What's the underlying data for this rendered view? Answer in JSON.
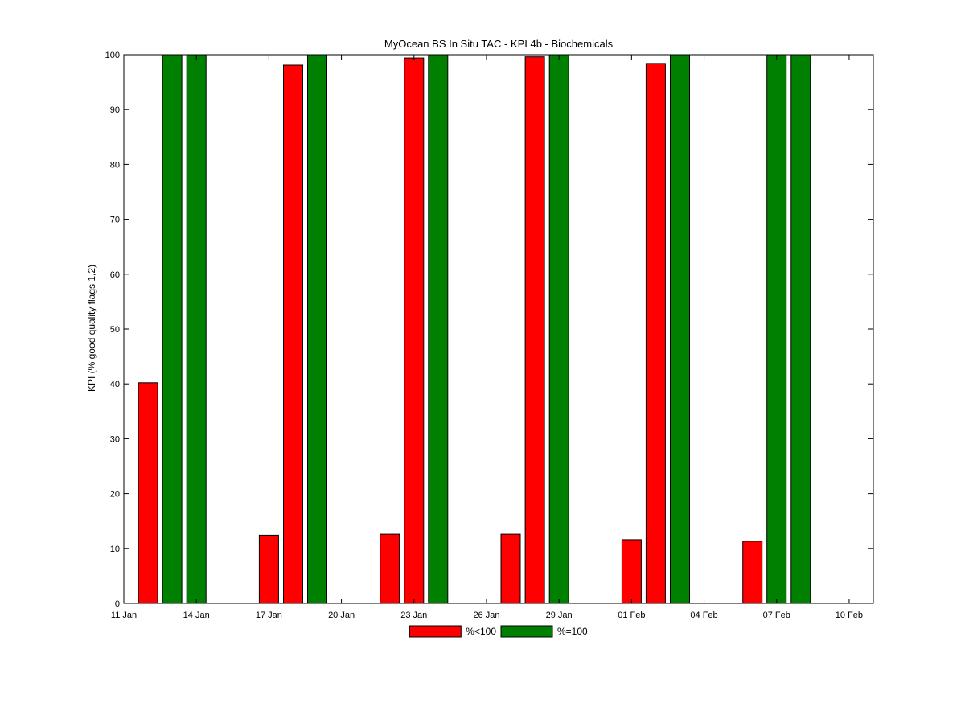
{
  "chart_data": {
    "type": "bar",
    "title": "MyOcean  BS In Situ TAC - KPI 4b - Biochemicals",
    "xlabel": "",
    "ylabel": "KPI (% good quality flags 1,2)",
    "ylim": [
      0,
      100
    ],
    "xlim": [
      "11 Jan",
      "11 Feb"
    ],
    "x_ticks": [
      "11 Jan",
      "14 Jan",
      "17 Jan",
      "20 Jan",
      "23 Jan",
      "26 Jan",
      "29 Jan",
      "01 Feb",
      "04 Feb",
      "07 Feb",
      "10 Feb"
    ],
    "y_ticks": [
      0,
      10,
      20,
      30,
      40,
      50,
      60,
      70,
      80,
      90,
      100
    ],
    "legend_position": "bottom-center",
    "grid": false,
    "series": [
      {
        "name": "%<100",
        "color": "#ff0000",
        "points": [
          {
            "x": "12 Jan",
            "y": 40.2
          },
          {
            "x": "17 Jan",
            "y": 12.4
          },
          {
            "x": "18 Jan",
            "y": 98.1
          },
          {
            "x": "22 Jan",
            "y": 12.6
          },
          {
            "x": "23 Jan",
            "y": 99.4
          },
          {
            "x": "27 Jan",
            "y": 12.6
          },
          {
            "x": "28 Jan",
            "y": 99.6
          },
          {
            "x": "01 Feb",
            "y": 11.6
          },
          {
            "x": "02 Feb",
            "y": 98.4
          },
          {
            "x": "06 Feb",
            "y": 11.3
          }
        ]
      },
      {
        "name": "%=100",
        "color": "#008000",
        "points": [
          {
            "x": "13 Jan",
            "y": 100
          },
          {
            "x": "14 Jan",
            "y": 100
          },
          {
            "x": "19 Jan",
            "y": 100
          },
          {
            "x": "24 Jan",
            "y": 100
          },
          {
            "x": "29 Jan",
            "y": 100
          },
          {
            "x": "03 Feb",
            "y": 100
          },
          {
            "x": "07 Feb",
            "y": 100
          },
          {
            "x": "08 Feb",
            "y": 100
          }
        ]
      }
    ]
  }
}
